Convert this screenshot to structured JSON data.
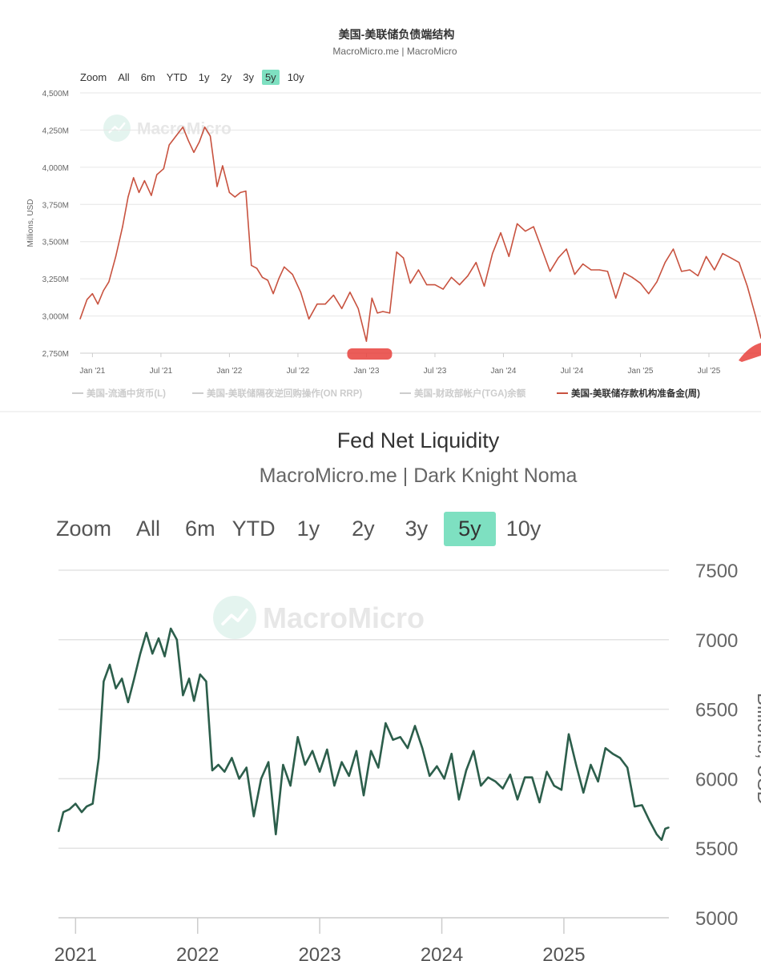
{
  "chart_data": [
    {
      "type": "line",
      "title": "美国-美联储负债端结构",
      "subtitle": "MacroMicro.me | MacroMicro",
      "watermark": "MacroMicro",
      "range_selector": {
        "zoom_label": "Zoom",
        "buttons": [
          "All",
          "6m",
          "YTD",
          "1y",
          "2y",
          "3y",
          "5y",
          "10y"
        ],
        "active": "5y"
      },
      "ylabel": "Millions, USD",
      "ylim": [
        2750,
        4500
      ],
      "yticks": [
        "2,750M",
        "3,000M",
        "3,250M",
        "3,500M",
        "3,750M",
        "4,000M",
        "4,250M",
        "4,500M"
      ],
      "xticks": [
        "Jan '21",
        "Jul '21",
        "Jan '22",
        "Jul '22",
        "Jan '23",
        "Jul '23",
        "Jan '24",
        "Jul '24",
        "Jan '25",
        "Jul '25"
      ],
      "x_range": [
        2020.91,
        2025.88
      ],
      "legend": [
        {
          "label": "美国-流通中货币(L)",
          "active": false
        },
        {
          "label": "美国-美联储隔夜逆回购操作(ON RRP)",
          "active": false
        },
        {
          "label": "美国-财政部帐户(TGA)余额",
          "active": false
        },
        {
          "label": "美国-美联储存款机构准备金(周)",
          "active": true
        }
      ],
      "colors": {
        "line": "#c8523f",
        "inactive_legend": "#cccccc",
        "grid": "#e6e6e6",
        "highlight": "#e8413c",
        "range_active": "#7ee0c1"
      },
      "series": [
        {
          "name": "美国-美联储存款机构准备金(周)",
          "x": [
            2020.91,
            2020.96,
            2021.0,
            2021.04,
            2021.08,
            2021.12,
            2021.17,
            2021.22,
            2021.26,
            2021.3,
            2021.34,
            2021.38,
            2021.43,
            2021.47,
            2021.52,
            2021.56,
            2021.61,
            2021.66,
            2021.7,
            2021.74,
            2021.78,
            2021.82,
            2021.86,
            2021.91,
            2021.95,
            2022.0,
            2022.04,
            2022.08,
            2022.12,
            2022.16,
            2022.2,
            2022.24,
            2022.28,
            2022.32,
            2022.36,
            2022.4,
            2022.46,
            2022.52,
            2022.58,
            2022.64,
            2022.7,
            2022.76,
            2022.82,
            2022.88,
            2022.94,
            2023.0,
            2023.04,
            2023.08,
            2023.12,
            2023.17,
            2023.22,
            2023.27,
            2023.32,
            2023.38,
            2023.44,
            2023.5,
            2023.56,
            2023.62,
            2023.68,
            2023.74,
            2023.8,
            2023.86,
            2023.92,
            2023.98,
            2024.04,
            2024.1,
            2024.16,
            2024.22,
            2024.28,
            2024.34,
            2024.4,
            2024.46,
            2024.52,
            2024.58,
            2024.64,
            2024.7,
            2024.76,
            2024.82,
            2024.88,
            2024.94,
            2025.0,
            2025.06,
            2025.12,
            2025.18,
            2025.24,
            2025.3,
            2025.36,
            2025.42,
            2025.48,
            2025.54,
            2025.6,
            2025.66,
            2025.72,
            2025.78,
            2025.84,
            2025.88
          ],
          "values": [
            2980,
            3110,
            3150,
            3080,
            3170,
            3230,
            3400,
            3600,
            3800,
            3930,
            3830,
            3910,
            3810,
            3950,
            3990,
            4150,
            4210,
            4270,
            4180,
            4100,
            4170,
            4270,
            4210,
            3870,
            4010,
            3830,
            3800,
            3830,
            3840,
            3340,
            3320,
            3260,
            3240,
            3150,
            3250,
            3330,
            3280,
            3160,
            2980,
            3080,
            3080,
            3140,
            3050,
            3160,
            3050,
            2830,
            3120,
            3020,
            3030,
            3020,
            3430,
            3390,
            3220,
            3310,
            3210,
            3210,
            3180,
            3260,
            3210,
            3270,
            3360,
            3200,
            3420,
            3560,
            3400,
            3620,
            3570,
            3600,
            3450,
            3300,
            3390,
            3450,
            3280,
            3350,
            3310,
            3310,
            3300,
            3120,
            3290,
            3260,
            3220,
            3150,
            3230,
            3360,
            3450,
            3300,
            3310,
            3270,
            3400,
            3310,
            3420,
            3390,
            3360,
            3200,
            3000,
            2850
          ]
        }
      ]
    },
    {
      "type": "line",
      "title": "Fed Net Liquidity",
      "subtitle": "MacroMicro.me | Dark Knight Noma",
      "watermark": "MacroMicro",
      "range_selector": {
        "zoom_label": "Zoom",
        "buttons": [
          "All",
          "6m",
          "YTD",
          "1y",
          "2y",
          "3y",
          "5y",
          "10y"
        ],
        "active": "5y"
      },
      "ylabel": "Billions, USD",
      "ylim": [
        5000,
        7500
      ],
      "yticks": [
        "5000",
        "5500",
        "6000",
        "6500",
        "7000",
        "7500"
      ],
      "xticks": [
        "2021",
        "2022",
        "2023",
        "2024",
        "2025"
      ],
      "x_range": [
        2020.86,
        2025.86
      ],
      "colors": {
        "line": "#2c5e4b",
        "grid": "#e6e6e6",
        "range_active": "#7ee0c1"
      },
      "series": [
        {
          "name": "Fed Net Liquidity",
          "x": [
            2020.86,
            2020.9,
            2020.95,
            2021.0,
            2021.05,
            2021.09,
            2021.14,
            2021.19,
            2021.23,
            2021.28,
            2021.33,
            2021.38,
            2021.43,
            2021.48,
            2021.53,
            2021.58,
            2021.63,
            2021.68,
            2021.73,
            2021.78,
            2021.83,
            2021.88,
            2021.93,
            2021.97,
            2022.02,
            2022.07,
            2022.12,
            2022.17,
            2022.22,
            2022.28,
            2022.34,
            2022.4,
            2022.46,
            2022.52,
            2022.58,
            2022.64,
            2022.7,
            2022.76,
            2022.82,
            2022.88,
            2022.94,
            2023.0,
            2023.06,
            2023.12,
            2023.18,
            2023.24,
            2023.3,
            2023.36,
            2023.42,
            2023.48,
            2023.54,
            2023.6,
            2023.66,
            2023.72,
            2023.78,
            2023.84,
            2023.9,
            2023.96,
            2024.02,
            2024.08,
            2024.14,
            2024.2,
            2024.26,
            2024.32,
            2024.38,
            2024.44,
            2024.5,
            2024.56,
            2024.62,
            2024.68,
            2024.74,
            2024.8,
            2024.86,
            2024.92,
            2024.98,
            2025.04,
            2025.1,
            2025.16,
            2025.22,
            2025.28,
            2025.34,
            2025.4,
            2025.46,
            2025.52,
            2025.58,
            2025.64,
            2025.7,
            2025.76,
            2025.8,
            2025.83,
            2025.86
          ],
          "values": [
            5620,
            5760,
            5780,
            5820,
            5760,
            5800,
            5820,
            6150,
            6700,
            6820,
            6650,
            6720,
            6550,
            6720,
            6900,
            7050,
            6900,
            7010,
            6880,
            7080,
            7000,
            6600,
            6720,
            6560,
            6750,
            6700,
            6060,
            6100,
            6050,
            6150,
            6000,
            6080,
            5730,
            6000,
            6120,
            5600,
            6100,
            5950,
            6300,
            6100,
            6200,
            6050,
            6210,
            5950,
            6120,
            6020,
            6200,
            5880,
            6200,
            6080,
            6400,
            6280,
            6300,
            6220,
            6380,
            6220,
            6020,
            6090,
            6000,
            6180,
            5850,
            6060,
            6200,
            5950,
            6010,
            5980,
            5930,
            6030,
            5850,
            6010,
            6010,
            5830,
            6050,
            5950,
            5920,
            6320,
            6100,
            5900,
            6100,
            5980,
            6220,
            6180,
            6150,
            6080,
            5800,
            5810,
            5700,
            5600,
            5560,
            5640,
            5650
          ]
        }
      ]
    }
  ]
}
